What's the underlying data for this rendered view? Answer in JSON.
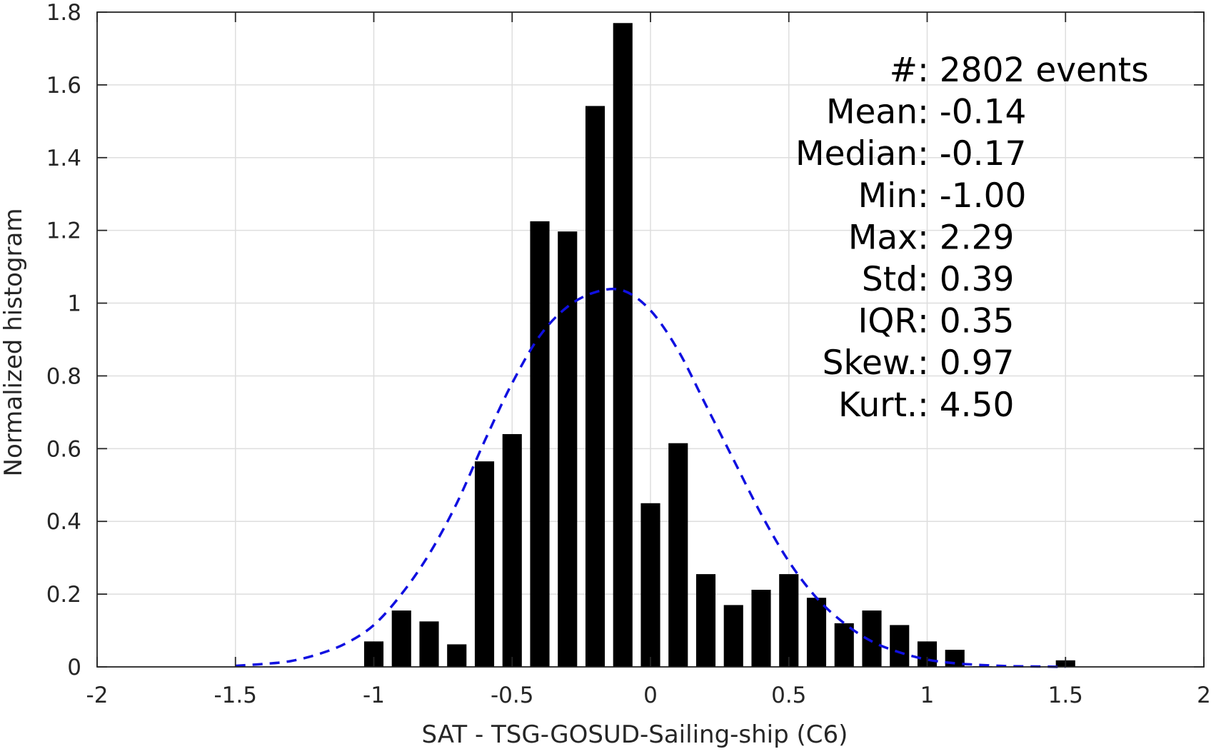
{
  "chart_data": {
    "type": "bar",
    "xlabel": "SAT - TSG-GOSUD-Sailing-ship (C6)",
    "ylabel": "Normalized histogram",
    "xlim": [
      -2,
      2
    ],
    "ylim": [
      0,
      1.8
    ],
    "xticks": [
      -2,
      -1.5,
      -1,
      -0.5,
      0,
      0.5,
      1,
      1.5,
      2
    ],
    "xtick_labels": [
      "-2",
      "-1.5",
      "-1",
      "-0.5",
      "0",
      "0.5",
      "1",
      "1.5",
      "2"
    ],
    "yticks": [
      0,
      0.2,
      0.4,
      0.6,
      0.8,
      1,
      1.2,
      1.4,
      1.6,
      1.8
    ],
    "ytick_labels": [
      "0",
      "0.2",
      "0.4",
      "0.6",
      "0.8",
      "1",
      "1.2",
      "1.4",
      "1.6",
      "1.8"
    ],
    "grid": true,
    "bar_width": 0.07,
    "bar_color": "#000000",
    "bars": {
      "x": [
        -1.0,
        -0.9,
        -0.8,
        -0.7,
        -0.6,
        -0.5,
        -0.4,
        -0.3,
        -0.2,
        -0.1,
        0.0,
        0.1,
        0.2,
        0.3,
        0.4,
        0.5,
        0.6,
        0.7,
        0.8,
        0.9,
        1.0,
        1.1,
        1.2,
        1.3,
        1.4,
        1.5
      ],
      "values": [
        0.07,
        0.155,
        0.125,
        0.062,
        0.565,
        0.64,
        1.225,
        1.197,
        1.542,
        1.77,
        0.45,
        0.615,
        0.255,
        0.17,
        0.212,
        0.255,
        0.19,
        0.12,
        0.155,
        0.115,
        0.07,
        0.047,
        0.002,
        0.0,
        0.0,
        0.018
      ]
    },
    "fit_curve": {
      "style": "dashed",
      "color": "#1010e0",
      "x": [
        -1.5,
        -1.4,
        -1.3,
        -1.2,
        -1.1,
        -1.0,
        -0.9,
        -0.8,
        -0.7,
        -0.6,
        -0.5,
        -0.4,
        -0.3,
        -0.2,
        -0.1,
        0.0,
        0.1,
        0.2,
        0.3,
        0.4,
        0.5,
        0.6,
        0.7,
        0.8,
        0.9,
        1.0,
        1.1,
        1.2,
        1.3,
        1.4,
        1.5
      ],
      "y": [
        0.003,
        0.008,
        0.016,
        0.035,
        0.065,
        0.115,
        0.2,
        0.31,
        0.45,
        0.62,
        0.78,
        0.91,
        0.99,
        1.03,
        1.035,
        0.98,
        0.87,
        0.72,
        0.57,
        0.42,
        0.29,
        0.19,
        0.12,
        0.07,
        0.04,
        0.02,
        0.01,
        0.005,
        0.002,
        0.001,
        0.0
      ]
    },
    "stats": [
      {
        "label": "#  ",
        "value": ": 2802 events"
      },
      {
        "label": "Mean ",
        "value": ": -0.14"
      },
      {
        "label": "Median ",
        "value": ": -0.17"
      },
      {
        "label": "Min ",
        "value": ": -1.00"
      },
      {
        "label": "Max ",
        "value": ": 2.29"
      },
      {
        "label": "Std ",
        "value": ": 0.39"
      },
      {
        "label": "IQR ",
        "value": ": 0.35"
      },
      {
        "label": "Skew. ",
        "value": ": 0.97"
      },
      {
        "label": "Kurt. ",
        "value": ": 4.50"
      }
    ]
  }
}
